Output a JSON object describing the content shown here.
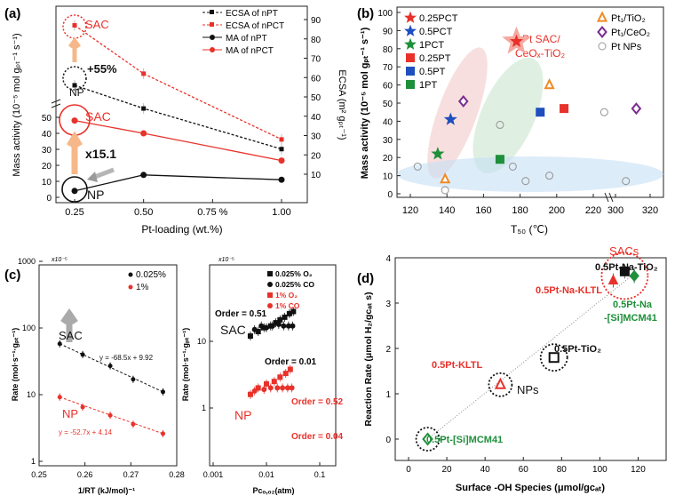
{
  "chart_data": [
    {
      "panel": "(a)",
      "type": "line",
      "xlabel": "Pt-loading (wt.%)",
      "ylabel_left": "Mass activity (10⁻⁵ mol gₚₜ⁻¹ s⁻¹)",
      "ylabel_right": "ECSA (m² gₚₜ⁻¹)",
      "x_ticks": [
        "0.25",
        "0.50",
        "0.75 %",
        "1.00"
      ],
      "x_values": [
        0.25,
        0.5,
        1.0
      ],
      "left_ticks_lower": [
        "0",
        "10",
        "20",
        "30",
        "40",
        "50"
      ],
      "right_ticks": [
        "10",
        "20",
        "30",
        "40",
        "50",
        "60",
        "70",
        "80",
        "90"
      ],
      "series": [
        {
          "name": "ECSA of nPT",
          "axis": "right",
          "style": "dashed",
          "color": "#111111",
          "values": [
            56,
            44,
            23
          ]
        },
        {
          "name": "ECSA of nPCT",
          "axis": "right",
          "style": "dashed",
          "color": "#e8312a",
          "values": [
            87,
            62,
            28
          ]
        },
        {
          "name": "MA of nPT",
          "axis": "left",
          "style": "solid",
          "color": "#111111",
          "values": [
            4,
            14,
            11
          ]
        },
        {
          "name": "MA of nPCT",
          "axis": "left",
          "style": "solid",
          "color": "#e8312a",
          "values": [
            48,
            40,
            23
          ]
        }
      ],
      "annotations": [
        "SAC",
        "NP",
        "+55%",
        "SAC",
        "x15.1",
        "NP"
      ]
    },
    {
      "panel": "(b)",
      "type": "scatter",
      "xlabel": "T₅₀ (℃)",
      "ylabel": "Mass activity (10⁻⁵ mol gₚₜ⁻¹ s⁻¹)",
      "x_ticks": [
        "120",
        "140",
        "160",
        "180",
        "200",
        "220",
        "300",
        "320"
      ],
      "y_ticks": [
        "0",
        "10",
        "20",
        "30",
        "40",
        "50",
        "60",
        "70",
        "80",
        "90",
        "100"
      ],
      "ylim": [
        0,
        100
      ],
      "legend_col1": [
        "0.25PCT",
        "0.5PCT",
        "1PCT",
        "0.25PT",
        "0.5PT",
        "1PT"
      ],
      "legend_col2": [
        "Pt₁/TiO₂",
        "Pt₁/CeO₂",
        "Pt NPs"
      ],
      "highlight_label_1": "Pt SAC/",
      "highlight_label_2": "CeOₓ-TiO₂",
      "points": [
        {
          "name": "0.25PCT",
          "x": 178,
          "y": 84,
          "marker": "star",
          "color": "#e8312a"
        },
        {
          "name": "0.5PCT",
          "x": 142,
          "y": 41,
          "marker": "star",
          "color": "#1f4fbf"
        },
        {
          "name": "1PCT",
          "x": 135,
          "y": 22,
          "marker": "star",
          "color": "#1e8f3a"
        },
        {
          "name": "0.25PT",
          "x": 204,
          "y": 47,
          "marker": "square",
          "color": "#e8312a"
        },
        {
          "name": "0.5PT",
          "x": 191,
          "y": 45,
          "marker": "square",
          "color": "#1f4fbf"
        },
        {
          "name": "1PT",
          "x": 169,
          "y": 19,
          "marker": "square",
          "color": "#1e8f3a"
        },
        {
          "name": "Pt1/TiO2",
          "x": 196,
          "y": 60,
          "marker": "triangle",
          "color": "#f08a24"
        },
        {
          "name": "Pt1/TiO2",
          "x": 139,
          "y": 8,
          "marker": "triangle",
          "color": "#f08a24"
        },
        {
          "name": "Pt1/CeO2",
          "x": 149,
          "y": 51,
          "marker": "diamond",
          "color": "#7b2a8f"
        },
        {
          "name": "Pt1/CeO2",
          "x": 312,
          "y": 47,
          "marker": "diamond",
          "color": "#7b2a8f"
        }
      ],
      "pt_nps": [
        [
          124,
          15
        ],
        [
          139,
          2
        ],
        [
          169,
          38
        ],
        [
          176,
          15
        ],
        [
          183,
          7
        ],
        [
          196,
          10
        ],
        [
          226,
          45
        ],
        [
          306,
          7
        ]
      ]
    },
    {
      "panel": "(c) left",
      "type": "scatter",
      "xlabel": "1/RT (kJ/mol)⁻¹",
      "ylabel": "Rate (mol·s⁻¹·gₚₜ⁻¹)",
      "y_scale_label": "x10⁻⁵",
      "x_ticks": [
        "0.25",
        "0.26",
        "0.27",
        "0.28"
      ],
      "y_ticks": [
        "1",
        "10",
        "100",
        "1000"
      ],
      "legend": [
        "0.025%",
        "1%"
      ],
      "series": [
        {
          "name": "0.025%",
          "color": "#111111",
          "x": [
            0.2545,
            0.2595,
            0.2655,
            0.2705,
            0.277
          ],
          "y": [
            58,
            40,
            27,
            17,
            11
          ]
        },
        {
          "name": "1%",
          "color": "#e8312a",
          "x": [
            0.2545,
            0.2595,
            0.2655,
            0.2705,
            0.277
          ],
          "y": [
            9.2,
            6.5,
            4.9,
            3.6,
            2.6
          ]
        }
      ],
      "fit_black": "y = -68.5x + 9.92",
      "fit_red": "y = -52.7x + 4.14",
      "annotations": [
        "SAC",
        "NP"
      ]
    },
    {
      "panel": "(c) right",
      "type": "scatter",
      "xlabel": "Pᴄₒ,ₒ₂(atm)",
      "ylabel": "Rate (mol·s⁻¹·gₚₜ⁻¹)",
      "y_scale_label": "x10⁻⁵",
      "x_ticks": [
        "0.001",
        "0.01",
        "0.1"
      ],
      "legend": [
        "0.025% O₂",
        "0.025% CO",
        "1% O₂",
        "1% CO"
      ],
      "series": [
        {
          "name": "0.025% O2",
          "marker": "square",
          "color": "#111111",
          "x": [
            0.005,
            0.007,
            0.009,
            0.012,
            0.015,
            0.018,
            0.022,
            0.027,
            0.032
          ],
          "y": [
            12,
            14,
            16,
            17,
            19,
            21,
            23,
            26,
            28
          ]
        },
        {
          "name": "0.025% CO",
          "marker": "circle",
          "color": "#111111",
          "x": [
            0.006,
            0.008,
            0.01,
            0.013,
            0.017,
            0.021,
            0.026,
            0.031
          ],
          "y": [
            15,
            17,
            16,
            17,
            18,
            17,
            17,
            17
          ]
        },
        {
          "name": "1% O2",
          "marker": "square",
          "color": "#e8312a",
          "x": [
            0.005,
            0.007,
            0.01,
            0.014,
            0.018,
            0.023,
            0.028
          ],
          "y": [
            1.6,
            2.0,
            2.3,
            2.5,
            2.9,
            3.3,
            3.8
          ]
        },
        {
          "name": "1% CO",
          "marker": "circle",
          "color": "#e8312a",
          "x": [
            0.006,
            0.009,
            0.012,
            0.016,
            0.02,
            0.025,
            0.03
          ],
          "y": [
            1.8,
            1.9,
            2.0,
            2.0,
            2.0,
            2.0,
            2.0
          ]
        }
      ],
      "orders": [
        "Order = 0.51",
        "Order = 0.01",
        "Order = 0.52",
        "Order = 0.04"
      ],
      "annotations": [
        "SAC",
        "NP"
      ]
    },
    {
      "panel": "(d)",
      "type": "scatter",
      "xlabel": "Surface -OH Species (μmol/gᴄₐₜ)",
      "ylabel": "Reaction Rate (μmol H₂/gᴄₐₜ s)",
      "x_ticks": [
        "0",
        "20",
        "40",
        "60",
        "80",
        "100",
        "120"
      ],
      "y_ticks": [
        "0",
        "1",
        "2",
        "3",
        "4"
      ],
      "xlim": [
        0,
        130
      ],
      "ylim": [
        -0.35,
        4.1
      ],
      "group_labels": [
        "SACs",
        "NPs"
      ],
      "points": [
        {
          "name": "0.5Pt-[Si]MCM41",
          "x": 10,
          "y": 0.0,
          "marker": "open-diamond",
          "color": "#1e8f3a"
        },
        {
          "name": "0.5Pt-KLTL",
          "x": 48,
          "y": 1.2,
          "marker": "open-triangle",
          "color": "#e8312a"
        },
        {
          "name": "0.5Pt-TiO₂",
          "x": 76,
          "y": 1.8,
          "marker": "open-square",
          "color": "#111111"
        },
        {
          "name": "0.5Pt-Na-KLTL",
          "x": 107,
          "y": 3.5,
          "marker": "triangle",
          "color": "#e8312a"
        },
        {
          "name": "0.5Pt-Na-TiO₂",
          "x": 113,
          "y": 3.7,
          "marker": "square",
          "color": "#111111"
        },
        {
          "name": "0.5Pt-Na -[Si]MCM41",
          "x": 118,
          "y": 3.6,
          "marker": "diamond",
          "color": "#1e8f3a"
        }
      ],
      "trend": [
        [
          10,
          0.0
        ],
        [
          118,
          3.65
        ]
      ]
    }
  ],
  "labels": {
    "panel_a": "(a)",
    "panel_b": "(b)",
    "panel_c": "(c)",
    "panel_d": "(d)",
    "a_legend_1": "ECSA of nPT",
    "a_legend_2": "ECSA of nPCT",
    "a_legend_3": "MA of nPT",
    "a_legend_4": "MA of nPCT",
    "d_label_tio2_na": "0.5Pt-Na-TiO₂",
    "d_label_kltl_na": "0.5Pt-Na-KLTL",
    "d_label_mcm_na_1": "0.5Pt-Na",
    "d_label_mcm_na_2": "-[Si]MCM41",
    "d_label_tio2": "0.5Pt-TiO₂",
    "d_label_kltl": "0.5Pt-KLTL",
    "d_label_mcm": "0.5Pt-[Si]MCM41"
  },
  "colors": {
    "red": "#e8312a",
    "black": "#111111",
    "blue": "#1f4fbf",
    "green": "#1e8f3a",
    "orange": "#f08a24",
    "purple": "#7b2a8f",
    "gray": "#9a9a9a"
  }
}
